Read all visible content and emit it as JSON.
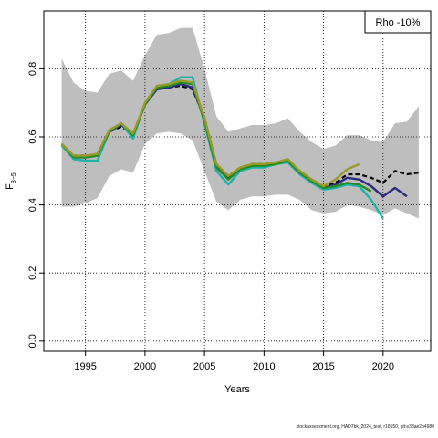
{
  "chart_data": {
    "type": "line",
    "xlabel": "Years",
    "ylabel_main": "F",
    "ylabel_sub": "3−5",
    "xlim": [
      1991.5,
      2024
    ],
    "ylim": [
      -0.03,
      0.97
    ],
    "x_ticks": [
      1995,
      2000,
      2005,
      2010,
      2015,
      2020
    ],
    "x_tick_labels": [
      "1995",
      "2000",
      "2005",
      "2010",
      "2015",
      "2020"
    ],
    "y_ticks": [
      0.0,
      0.2,
      0.4,
      0.6,
      0.8
    ],
    "y_tick_labels": [
      "0.0",
      "0.2",
      "0.4",
      "0.6",
      "0.8"
    ],
    "grid": true,
    "legend_text": "Rho -10%",
    "legend_placement": "top-right",
    "footer": "stockassessment.org, HAD7bk_2024_test, r18150, git:e38ae2b4980",
    "band": {
      "x": [
        1993,
        1994,
        1995,
        1996,
        1997,
        1998,
        1999,
        2000,
        2001,
        2002,
        2003,
        2004,
        2005,
        2006,
        2007,
        2008,
        2009,
        2010,
        2011,
        2012,
        2013,
        2014,
        2015,
        2016,
        2017,
        2018,
        2019,
        2020,
        2021,
        2022,
        2023
      ],
      "upper": [
        0.83,
        0.76,
        0.735,
        0.73,
        0.785,
        0.795,
        0.765,
        0.84,
        0.9,
        0.905,
        0.92,
        0.92,
        0.8,
        0.66,
        0.615,
        0.625,
        0.635,
        0.635,
        0.64,
        0.655,
        0.615,
        0.585,
        0.565,
        0.575,
        0.605,
        0.605,
        0.59,
        0.585,
        0.64,
        0.645,
        0.69
      ],
      "lower": [
        0.395,
        0.395,
        0.405,
        0.42,
        0.485,
        0.505,
        0.495,
        0.58,
        0.61,
        0.615,
        0.61,
        0.59,
        0.5,
        0.41,
        0.385,
        0.415,
        0.425,
        0.425,
        0.43,
        0.43,
        0.415,
        0.385,
        0.375,
        0.38,
        0.4,
        0.395,
        0.385,
        0.37,
        0.39,
        0.375,
        0.36
      ]
    },
    "series": [
      {
        "color": "#000000",
        "dashed": true,
        "x": [
          1993,
          1994,
          1995,
          1996,
          1997,
          1998,
          1999,
          2000,
          2001,
          2002,
          2003,
          2004,
          2005,
          2006,
          2007,
          2008,
          2009,
          2010,
          2011,
          2012,
          2013,
          2014,
          2015,
          2016,
          2017,
          2018,
          2019,
          2020,
          2021,
          2022,
          2023
        ],
        "y": [
          0.575,
          0.545,
          0.545,
          0.55,
          0.615,
          0.63,
          0.61,
          0.695,
          0.74,
          0.745,
          0.75,
          0.74,
          0.655,
          0.52,
          0.485,
          0.51,
          0.52,
          0.52,
          0.525,
          0.53,
          0.5,
          0.475,
          0.455,
          0.465,
          0.49,
          0.49,
          0.48,
          0.465,
          0.5,
          0.49,
          0.495
        ]
      },
      {
        "color": "#2a2a80",
        "dashed": false,
        "x": [
          1993,
          1994,
          1995,
          1996,
          1997,
          1998,
          1999,
          2000,
          2001,
          2002,
          2003,
          2004,
          2005,
          2006,
          2007,
          2008,
          2009,
          2010,
          2011,
          2012,
          2013,
          2014,
          2015,
          2016,
          2017,
          2018,
          2019,
          2020,
          2021,
          2022
        ],
        "y": [
          0.575,
          0.54,
          0.54,
          0.545,
          0.615,
          0.635,
          0.605,
          0.695,
          0.74,
          0.745,
          0.755,
          0.745,
          0.655,
          0.515,
          0.48,
          0.505,
          0.515,
          0.515,
          0.525,
          0.53,
          0.495,
          0.47,
          0.45,
          0.46,
          0.48,
          0.475,
          0.455,
          0.425,
          0.45,
          0.425
        ]
      },
      {
        "color": "#20b2aa",
        "dashed": false,
        "x": [
          1993,
          1994,
          1995,
          1996,
          1997,
          1998,
          1999,
          2000,
          2001,
          2002,
          2003,
          2004,
          2005,
          2006,
          2007,
          2008,
          2009,
          2010,
          2011,
          2012,
          2013,
          2014,
          2015,
          2016,
          2017,
          2018,
          2019,
          2020
        ],
        "y": [
          0.575,
          0.535,
          0.53,
          0.53,
          0.615,
          0.64,
          0.595,
          0.7,
          0.745,
          0.755,
          0.775,
          0.775,
          0.64,
          0.5,
          0.46,
          0.5,
          0.51,
          0.51,
          0.52,
          0.525,
          0.49,
          0.465,
          0.445,
          0.45,
          0.46,
          0.455,
          0.415,
          0.36
        ]
      },
      {
        "color": "#228b22",
        "dashed": false,
        "x": [
          1993,
          1994,
          1995,
          1996,
          1997,
          1998,
          1999,
          2000,
          2001,
          2002,
          2003,
          2004,
          2005,
          2006,
          2007,
          2008,
          2009,
          2010,
          2011,
          2012,
          2013,
          2014,
          2015,
          2016,
          2017,
          2018,
          2019
        ],
        "y": [
          0.58,
          0.54,
          0.54,
          0.545,
          0.615,
          0.64,
          0.605,
          0.695,
          0.745,
          0.75,
          0.76,
          0.755,
          0.645,
          0.51,
          0.475,
          0.505,
          0.515,
          0.515,
          0.52,
          0.53,
          0.495,
          0.47,
          0.45,
          0.455,
          0.465,
          0.46,
          0.44
        ]
      },
      {
        "color": "#9a9a2a",
        "dashed": false,
        "x": [
          1993,
          1994,
          1995,
          1996,
          1997,
          1998,
          1999,
          2000,
          2001,
          2002,
          2003,
          2004,
          2005,
          2006,
          2007,
          2008,
          2009,
          2010,
          2011,
          2012,
          2013,
          2014,
          2015,
          2016,
          2017,
          2018
        ],
        "y": [
          0.58,
          0.545,
          0.545,
          0.55,
          0.62,
          0.64,
          0.61,
          0.7,
          0.75,
          0.755,
          0.765,
          0.76,
          0.655,
          0.52,
          0.485,
          0.51,
          0.52,
          0.52,
          0.525,
          0.535,
          0.5,
          0.475,
          0.455,
          0.475,
          0.505,
          0.52
        ]
      }
    ]
  }
}
